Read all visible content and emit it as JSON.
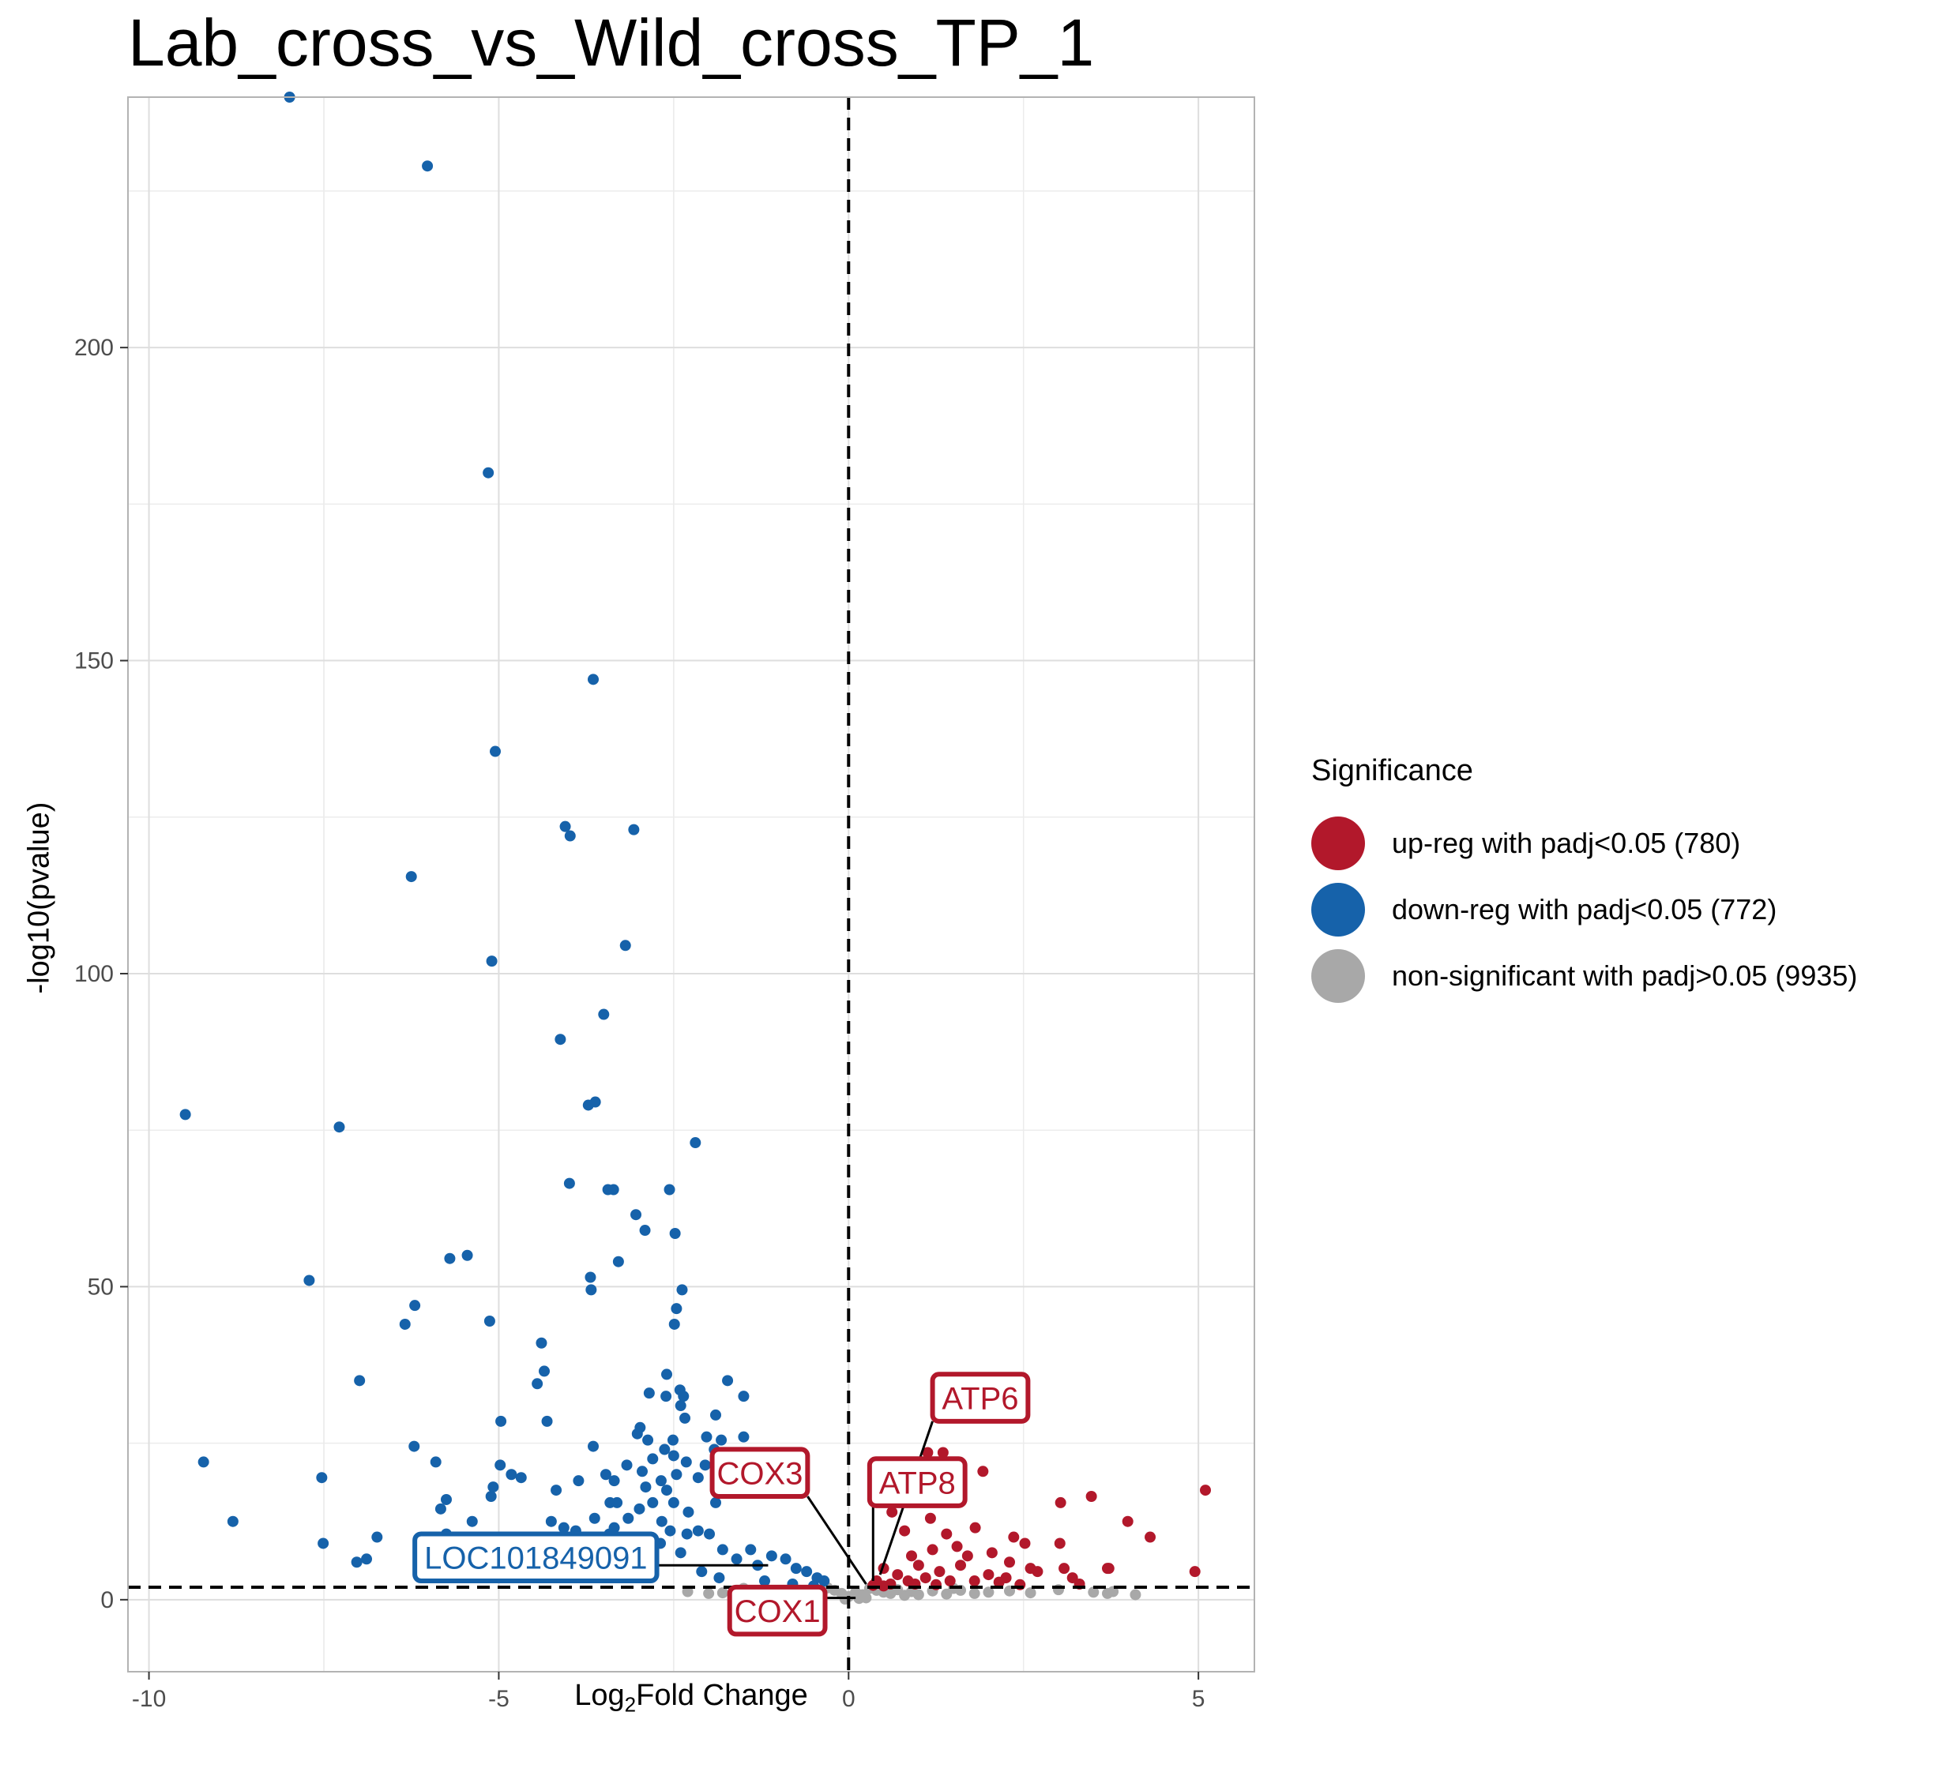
{
  "chart_data": {
    "type": "scatter",
    "title": "Lab_cross_vs_Wild_cross_TP_1",
    "xlabel_main": "Log",
    "xlabel_sub": "2",
    "xlabel_rest": "Fold Change",
    "ylabel": "-log10(pvalue)",
    "xlim": [
      -10.3,
      5.8
    ],
    "ylim": [
      -11.5,
      240
    ],
    "x_ticks": [
      -10,
      -5,
      0,
      5
    ],
    "x_tick_labels": [
      "-10",
      "-5",
      "0",
      "5"
    ],
    "y_ticks": [
      0,
      50,
      100,
      150,
      200
    ],
    "y_tick_labels": [
      "0",
      "50",
      "100",
      "150",
      "200"
    ],
    "grid": true,
    "thresholds": {
      "vline_x": 0,
      "hline_y": 2
    },
    "legend": {
      "title": "Significance",
      "position": "right",
      "entries": [
        {
          "label": "up-reg with padj<0.05 (780)",
          "color": "#B2182B"
        },
        {
          "label": "down-reg with padj<0.05 (772)",
          "color": "#1662AA"
        },
        {
          "label": "non-significant with padj>0.05 (9935)",
          "color": "#A8A8A8"
        }
      ]
    },
    "series": [
      {
        "name": "down-reg with padj<0.05 (772)",
        "color": "#1662AA",
        "points": [
          [
            -7.99,
            240
          ],
          [
            -6.02,
            229
          ],
          [
            -5.15,
            180
          ],
          [
            -3.65,
            147
          ],
          [
            -5.05,
            135.5
          ],
          [
            -4.05,
            123.5
          ],
          [
            -3.98,
            122
          ],
          [
            -3.07,
            123
          ],
          [
            -6.25,
            115.5
          ],
          [
            -3.19,
            104.5
          ],
          [
            -5.1,
            102
          ],
          [
            -3.5,
            93.5
          ],
          [
            -4.12,
            89.5
          ],
          [
            -9.48,
            77.5
          ],
          [
            -3.72,
            79
          ],
          [
            -3.62,
            79.5
          ],
          [
            -7.28,
            75.5
          ],
          [
            -2.19,
            73
          ],
          [
            -3.99,
            66.5
          ],
          [
            -3.44,
            65.5
          ],
          [
            -3.36,
            65.5
          ],
          [
            -2.56,
            65.5
          ],
          [
            -3.04,
            61.5
          ],
          [
            -2.48,
            58.5
          ],
          [
            -2.91,
            59
          ],
          [
            -5.7,
            54.5
          ],
          [
            -5.45,
            55
          ],
          [
            -3.29,
            54
          ],
          [
            -7.71,
            51
          ],
          [
            -3.69,
            51.5
          ],
          [
            -2.38,
            49.5
          ],
          [
            -3.68,
            49.5
          ],
          [
            -6.2,
            47
          ],
          [
            -2.46,
            46.5
          ],
          [
            -6.34,
            44
          ],
          [
            -2.49,
            44
          ],
          [
            -5.13,
            44.5
          ],
          [
            -4.39,
            41
          ],
          [
            -4.35,
            36.5
          ],
          [
            -4.45,
            34.5
          ],
          [
            -2.6,
            36
          ],
          [
            -6.99,
            35
          ],
          [
            -1.73,
            35
          ],
          [
            -2.41,
            33.5
          ],
          [
            -2.85,
            33
          ],
          [
            -2.61,
            32.5
          ],
          [
            -1.5,
            32.5
          ],
          [
            -2.36,
            32.5
          ],
          [
            -2.4,
            31
          ],
          [
            -1.9,
            29.5
          ],
          [
            -4.97,
            28.5
          ],
          [
            -4.31,
            28.5
          ],
          [
            -2.34,
            29
          ],
          [
            -2.98,
            27.5
          ],
          [
            -3.02,
            26.5
          ],
          [
            -2.03,
            26
          ],
          [
            -2.87,
            25.5
          ],
          [
            -2.51,
            25.5
          ],
          [
            -1.5,
            26
          ],
          [
            -1.82,
            25.5
          ],
          [
            -1.92,
            24
          ],
          [
            -6.21,
            24.5
          ],
          [
            -3.65,
            24.5
          ],
          [
            -2.63,
            24
          ],
          [
            -2.5,
            23
          ],
          [
            -1.69,
            22.5
          ],
          [
            -2.32,
            22
          ],
          [
            -2.8,
            22.5
          ],
          [
            -2.05,
            21.5
          ],
          [
            -9.22,
            22
          ],
          [
            -5.9,
            22
          ],
          [
            -4.98,
            21.5
          ],
          [
            -4.82,
            20
          ],
          [
            -4.68,
            19.5
          ],
          [
            -3.17,
            21.5
          ],
          [
            -2.95,
            20.5
          ],
          [
            -3.47,
            20
          ],
          [
            -2.46,
            20
          ],
          [
            -7.53,
            19.5
          ],
          [
            -2.68,
            19
          ],
          [
            -3.86,
            19
          ],
          [
            -3.35,
            19
          ],
          [
            -2.15,
            19.5
          ],
          [
            -5.08,
            18
          ],
          [
            -4.18,
            17.5
          ],
          [
            -2.9,
            18
          ],
          [
            -2.6,
            17.5
          ],
          [
            -1.52,
            18
          ],
          [
            -5.11,
            16.5
          ],
          [
            -5.75,
            16
          ],
          [
            -3.41,
            15.5
          ],
          [
            -3.31,
            15.5
          ],
          [
            -2.8,
            15.5
          ],
          [
            -2.5,
            15.5
          ],
          [
            -1.9,
            15.5
          ],
          [
            -5.83,
            14.5
          ],
          [
            -2.99,
            14.5
          ],
          [
            -3.63,
            13
          ],
          [
            -2.29,
            14
          ],
          [
            -5.38,
            12.5
          ],
          [
            -4.25,
            12.5
          ],
          [
            -3.15,
            13
          ],
          [
            -2.67,
            12.5
          ],
          [
            -8.8,
            12.5
          ],
          [
            -4.07,
            11.5
          ],
          [
            -3.9,
            11
          ],
          [
            -3.35,
            11.5
          ],
          [
            -2.55,
            11
          ],
          [
            -2.15,
            11
          ],
          [
            -6.74,
            10
          ],
          [
            -5.75,
            10.5
          ],
          [
            -4.52,
            10
          ],
          [
            -3.77,
            10
          ],
          [
            -3.42,
            10.5
          ],
          [
            -2.84,
            10
          ],
          [
            -2.31,
            10.5
          ],
          [
            -1.99,
            10.5
          ],
          [
            -7.51,
            9
          ],
          [
            -5.49,
            9
          ],
          [
            -4.83,
            9
          ],
          [
            -3.95,
            8.5
          ],
          [
            -3.2,
            8.5
          ],
          [
            -2.69,
            9
          ],
          [
            -7.03,
            6
          ],
          [
            -6.89,
            6.5
          ],
          [
            -5.28,
            6.5
          ],
          [
            -4.55,
            6
          ],
          [
            -3.71,
            7
          ],
          [
            -2.95,
            7
          ],
          [
            -2.4,
            7.5
          ],
          [
            -1.8,
            8
          ],
          [
            -1.4,
            8
          ],
          [
            -1.1,
            7
          ],
          [
            -0.9,
            6.5
          ],
          [
            -0.75,
            5
          ],
          [
            -0.6,
            4.5
          ],
          [
            -0.45,
            3.5
          ],
          [
            -0.35,
            3
          ],
          [
            -1.3,
            5.5
          ],
          [
            -1.6,
            6.5
          ],
          [
            -2.1,
            4.5
          ],
          [
            -1.85,
            3.5
          ],
          [
            -1.2,
            3
          ],
          [
            -0.8,
            2.5
          ],
          [
            -0.5,
            2.2
          ]
        ]
      },
      {
        "name": "up-reg with padj<0.05 (780)",
        "color": "#B2182B",
        "points": [
          [
            1.13,
            23.5
          ],
          [
            1.35,
            23.5
          ],
          [
            1.92,
            20.5
          ],
          [
            5.1,
            17.5
          ],
          [
            3.47,
            16.5
          ],
          [
            3.03,
            15.5
          ],
          [
            0.62,
            14
          ],
          [
            1.17,
            13
          ],
          [
            3.99,
            12.5
          ],
          [
            1.81,
            11.5
          ],
          [
            2.36,
            10
          ],
          [
            4.31,
            10
          ],
          [
            0.8,
            11
          ],
          [
            1.4,
            10.5
          ],
          [
            2.52,
            9
          ],
          [
            3.02,
            9
          ],
          [
            1.2,
            8
          ],
          [
            1.55,
            8.5
          ],
          [
            2.05,
            7.5
          ],
          [
            0.9,
            7
          ],
          [
            1.7,
            7
          ],
          [
            2.3,
            6
          ],
          [
            3.7,
            5
          ],
          [
            3.72,
            5
          ],
          [
            2.6,
            5
          ],
          [
            2.7,
            4.5
          ],
          [
            3.08,
            5
          ],
          [
            3.2,
            3.5
          ],
          [
            3.3,
            2.5
          ],
          [
            4.95,
            4.5
          ],
          [
            0.5,
            5
          ],
          [
            0.7,
            4
          ],
          [
            1.0,
            5.5
          ],
          [
            1.3,
            4.5
          ],
          [
            1.6,
            5.5
          ],
          [
            2.0,
            4
          ],
          [
            2.25,
            3.5
          ],
          [
            0.4,
            3
          ],
          [
            0.6,
            2.5
          ],
          [
            0.85,
            3
          ],
          [
            1.1,
            3.5
          ],
          [
            1.45,
            3
          ],
          [
            1.8,
            3
          ],
          [
            2.15,
            2.8
          ],
          [
            0.35,
            2.3
          ],
          [
            0.5,
            2.2
          ],
          [
            0.95,
            2.5
          ],
          [
            1.25,
            2.4
          ],
          [
            2.45,
            2.4
          ]
        ]
      },
      {
        "name": "non-significant with padj>0.05 (9935)",
        "color": "#A8A8A8",
        "points": [
          [
            0.0,
            0.5
          ],
          [
            0.1,
            1.2
          ],
          [
            -0.1,
            1.0
          ],
          [
            0.2,
            0.8
          ],
          [
            -0.2,
            1.5
          ],
          [
            0.3,
            1.8
          ],
          [
            -0.3,
            1.9
          ],
          [
            0.4,
            1.5
          ],
          [
            -0.4,
            1.6
          ],
          [
            0.5,
            1.2
          ],
          [
            -0.5,
            1.4
          ],
          [
            0.6,
            1.0
          ],
          [
            -0.6,
            0.9
          ],
          [
            0.7,
            1.6
          ],
          [
            -0.7,
            1.5
          ],
          [
            0.8,
            0.7
          ],
          [
            -0.8,
            0.6
          ],
          [
            0.9,
            1.3
          ],
          [
            -0.9,
            1.1
          ],
          [
            1.0,
            0.8
          ],
          [
            -1.0,
            0.7
          ],
          [
            1.2,
            1.4
          ],
          [
            -1.2,
            1.2
          ],
          [
            1.4,
            0.9
          ],
          [
            -1.4,
            0.8
          ],
          [
            1.6,
            1.5
          ],
          [
            -1.6,
            1.3
          ],
          [
            1.8,
            1.0
          ],
          [
            -1.8,
            1.1
          ],
          [
            2.0,
            1.2
          ],
          [
            -2.0,
            1.0
          ],
          [
            2.3,
            1.4
          ],
          [
            2.6,
            1.1
          ],
          [
            3.0,
            1.6
          ],
          [
            3.5,
            1.2
          ],
          [
            3.7,
            1.0
          ],
          [
            3.78,
            1.3
          ],
          [
            4.1,
            0.8
          ],
          [
            -2.3,
            1.3
          ],
          [
            -1.3,
            0.4
          ],
          [
            0.15,
            0.2
          ],
          [
            -0.05,
            0.1
          ],
          [
            0.25,
            0.3
          ],
          [
            1.5,
            1.8
          ],
          [
            -1.5,
            1.8
          ]
        ]
      }
    ],
    "annotations": [
      {
        "label": "ATP6",
        "series": "up-reg with padj<0.05 (780)",
        "color": "#B2182B"
      },
      {
        "label": "ATP8",
        "series": "up-reg with padj<0.05 (780)",
        "color": "#B2182B"
      },
      {
        "label": "COX3",
        "series": "up-reg with padj<0.05 (780)",
        "color": "#B2182B"
      },
      {
        "label": "COX1",
        "series": "up-reg with padj<0.05 (780)",
        "color": "#B2182B"
      },
      {
        "label": "LOC101849091",
        "series": "down-reg with padj<0.05 (772)",
        "color": "#1662AA"
      }
    ]
  }
}
